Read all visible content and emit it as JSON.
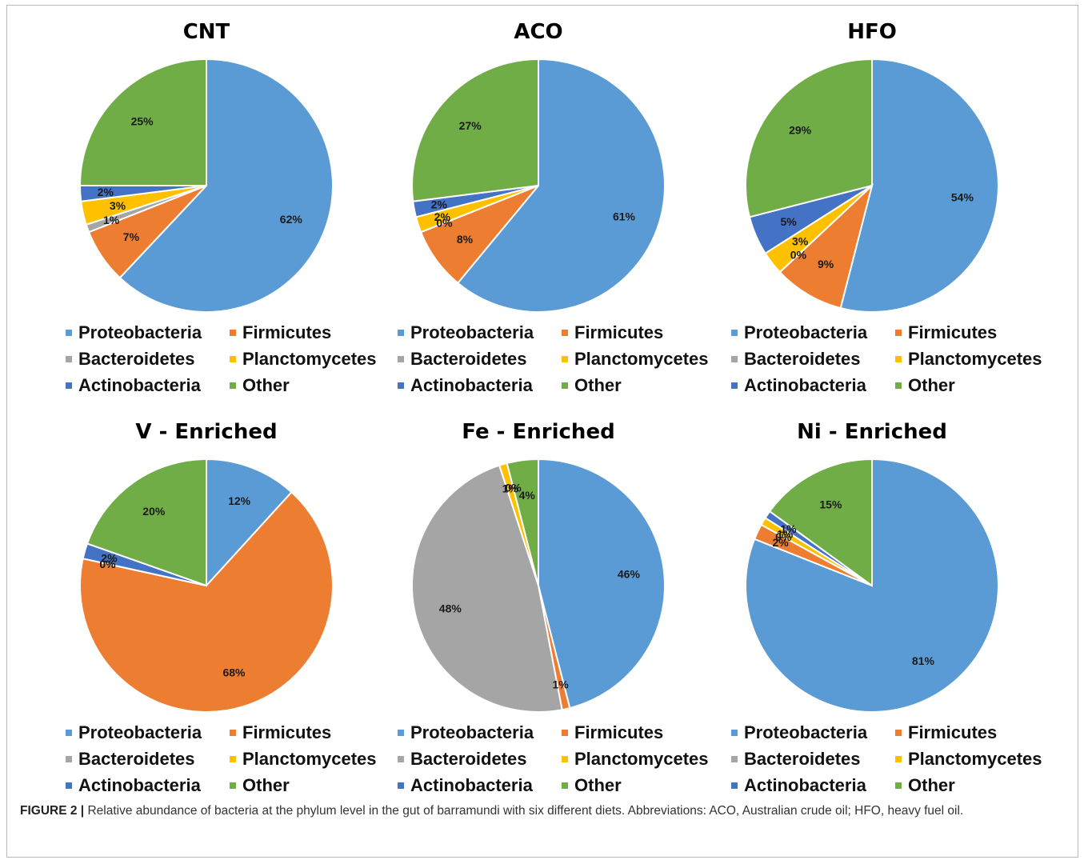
{
  "figure_caption": {
    "label": "FIGURE 2 |",
    "text": "Relative abundance of bacteria at the phylum level in the gut of barramundi with six different diets. Abbreviations: ACO, Australian crude oil; HFO, heavy fuel oil."
  },
  "colors": {
    "Proteobacteria": "#5b9bd5",
    "Firmicutes": "#ed7d31",
    "Bacteroidetes": "#a5a5a5",
    "Planctomycetes": "#ffc000",
    "Actinobacteria": "#4472c4",
    "Other": "#70ad47"
  },
  "chart_data": [
    {
      "type": "pie",
      "title": "CNT",
      "categories": [
        "Proteobacteria",
        "Firmicutes",
        "Bacteroidetes",
        "Planctomycetes",
        "Actinobacteria",
        "Other"
      ],
      "values": [
        62,
        7,
        1,
        3,
        2,
        25
      ],
      "labels": [
        "62%",
        "7%",
        "1%",
        "3%",
        "2%",
        "25%"
      ],
      "legend": "bottom"
    },
    {
      "type": "pie",
      "title": "ACO",
      "categories": [
        "Proteobacteria",
        "Firmicutes",
        "Bacteroidetes",
        "Planctomycetes",
        "Actinobacteria",
        "Other"
      ],
      "values": [
        61,
        8,
        0,
        2,
        2,
        27
      ],
      "labels": [
        "61%",
        "8%",
        "0%",
        "2%",
        "2%",
        "27%"
      ],
      "legend": "bottom"
    },
    {
      "type": "pie",
      "title": "HFO",
      "categories": [
        "Proteobacteria",
        "Firmicutes",
        "Bacteroidetes",
        "Planctomycetes",
        "Actinobacteria",
        "Other"
      ],
      "values": [
        54,
        9,
        0,
        3,
        5,
        29
      ],
      "labels": [
        "54%",
        "9%",
        "0%",
        "3%",
        "5%",
        "29%"
      ],
      "legend": "bottom"
    },
    {
      "type": "pie",
      "title": "V - Enriched",
      "categories": [
        "Proteobacteria",
        "Firmicutes",
        "Bacteroidetes",
        "Planctomycetes",
        "Actinobacteria",
        "Other"
      ],
      "values": [
        12,
        68,
        0,
        0,
        2,
        20
      ],
      "labels": [
        "12%",
        "68%",
        "0%",
        "0%",
        "2%",
        "20%"
      ],
      "legend": "bottom"
    },
    {
      "type": "pie",
      "title": "Fe - Enriched",
      "categories": [
        "Proteobacteria",
        "Firmicutes",
        "Bacteroidetes",
        "Planctomycetes",
        "Actinobacteria",
        "Other"
      ],
      "values": [
        46,
        1,
        48,
        1,
        0,
        4
      ],
      "labels": [
        "46%",
        "1%",
        "48%",
        "1%",
        "0%",
        "4%"
      ],
      "legend": "bottom"
    },
    {
      "type": "pie",
      "title": "Ni - Enriched",
      "categories": [
        "Proteobacteria",
        "Firmicutes",
        "Bacteroidetes",
        "Planctomycetes",
        "Actinobacteria",
        "Other"
      ],
      "values": [
        81,
        2,
        0,
        1,
        1,
        15
      ],
      "labels": [
        "81%",
        "2%",
        "0%",
        "1%",
        "1%",
        "15%"
      ],
      "legend": "bottom"
    }
  ]
}
